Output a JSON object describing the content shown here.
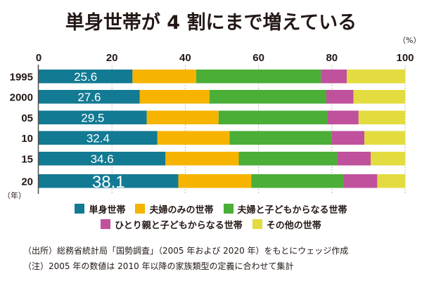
{
  "chart_data": {
    "type": "bar",
    "orientation": "horizontal",
    "stacked": true,
    "title": "単身世帯が 4 割にまで増えている",
    "xlabel": "",
    "unit_label": "（%）",
    "ylabel_unit": "（年）",
    "xlim": [
      0,
      100
    ],
    "xticks": [
      0,
      20,
      40,
      60,
      80,
      100
    ],
    "grid": true,
    "legend_position": "bottom",
    "categories": [
      "1995",
      "2000",
      "05",
      "10",
      "15",
      "20"
    ],
    "series": [
      {
        "name": "単身世帯",
        "color": "#137a93",
        "values": [
          25.6,
          27.6,
          29.5,
          32.4,
          34.6,
          38.1
        ],
        "labeled": true
      },
      {
        "name": "夫婦のみの世帯",
        "color": "#f6b400",
        "values": [
          17.4,
          19.0,
          19.6,
          19.7,
          20.0,
          19.9
        ]
      },
      {
        "name": "夫婦と子どもからなる世帯",
        "color": "#4aae37",
        "values": [
          34.0,
          31.9,
          29.7,
          27.9,
          26.9,
          25.3
        ]
      },
      {
        "name": "ひとり親と子どもからなる世帯",
        "color": "#c0519c",
        "values": [
          7.1,
          7.4,
          8.5,
          8.9,
          9.1,
          9.1
        ]
      },
      {
        "name": "その他の世帯",
        "color": "#e2dc40",
        "values": [
          15.9,
          14.1,
          12.7,
          11.1,
          9.4,
          7.6
        ]
      }
    ],
    "data_labels": [
      "25.6",
      "27.6",
      "29.5",
      "32.4",
      "34.6",
      "38.1"
    ]
  },
  "legend": {
    "rows": [
      [
        0,
        1,
        2
      ],
      [
        3,
        4
      ]
    ]
  },
  "notes": {
    "source": "（出所）総務省統計局「国勢調査」（2005 年および 2020 年）をもとにウェッジ作成",
    "note": "（注）2005 年の数値は 2010 年以降の家族類型の定義に合わせて集計"
  }
}
